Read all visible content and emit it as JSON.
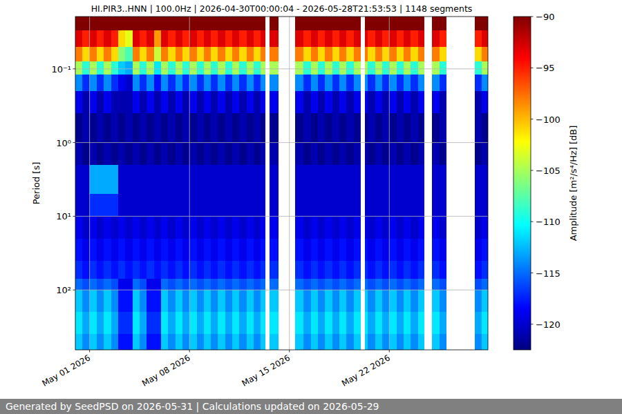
{
  "chart_data": {
    "type": "heatmap",
    "title": "HI.PIR3..HNN | 100.0Hz | 2026-04-30T00:00:04 - 2026-05-28T21:53:53 | 1148 segments",
    "y_label": "Period [s]",
    "log": "y",
    "grid": true,
    "xlim": [
      "2026-04-30T00:00:04",
      "2026-05-28T21:53:53"
    ],
    "ylim": [
      650,
      0.0195
    ],
    "xticks": [
      {
        "value": "2026-05-01",
        "label": "May 01 2026"
      },
      {
        "value": "2026-05-08",
        "label": "May 08 2026"
      },
      {
        "value": "2026-05-15",
        "label": "May 15 2026"
      },
      {
        "value": "2026-05-22",
        "label": "May 22 2026"
      }
    ],
    "yticks": [
      {
        "value": 0.1,
        "label": "10⁻¹"
      },
      {
        "value": 1,
        "label": "10⁰"
      },
      {
        "value": 10,
        "label": "10¹"
      },
      {
        "value": 100,
        "label": "10²"
      }
    ],
    "x_bins": [
      "2026-04-30T00:00",
      "2026-04-30T12:00",
      "2026-05-01T00:00",
      "2026-05-01T12:00",
      "2026-05-02T00:00",
      "2026-05-02T12:00",
      "2026-05-03T00:00",
      "2026-05-03T12:00",
      "2026-05-04T00:00",
      "2026-05-04T12:00",
      "2026-05-05T00:00",
      "2026-05-05T12:00",
      "2026-05-06T00:00",
      "2026-05-06T12:00",
      "2026-05-07T00:00",
      "2026-05-07T12:00",
      "2026-05-08T00:00",
      "2026-05-08T12:00",
      "2026-05-09T00:00",
      "2026-05-09T12:00",
      "2026-05-10T00:00",
      "2026-05-10T12:00",
      "2026-05-11T00:00",
      "2026-05-11T12:00",
      "2026-05-12T00:00",
      "2026-05-12T12:00",
      "2026-05-13T00:00",
      "2026-05-13T07:12",
      "2026-05-13T14:24",
      "2026-05-14T04:48",
      "2026-05-15T09:36",
      "2026-05-16T00:00",
      "2026-05-16T12:00",
      "2026-05-17T00:00",
      "2026-05-17T12:00",
      "2026-05-18T00:00",
      "2026-05-18T12:00",
      "2026-05-19T00:00",
      "2026-05-19T12:00",
      "2026-05-20T00:00",
      "2026-05-20T07:12",
      "2026-05-20T12:00",
      "2026-05-21T00:00",
      "2026-05-21T12:00",
      "2026-05-22T00:00",
      "2026-05-22T12:00",
      "2026-05-23T00:00",
      "2026-05-23T12:00",
      "2026-05-24T00:00",
      "2026-05-24T10:48",
      "2026-05-25T00:00",
      "2026-05-25T12:00",
      "2026-05-26T00:00",
      "2026-05-28T00:00",
      "2026-05-28T12:00",
      "2026-05-29T00:00"
    ],
    "y_bins": [
      0.0195,
      0.03,
      0.05,
      0.08,
      0.12,
      0.2,
      0.4,
      1,
      2,
      5,
      10,
      20,
      40,
      70,
      100,
      200,
      400,
      650
    ],
    "cells": [
      [
        -90,
        -90,
        -90,
        -90,
        -90,
        -90,
        -90,
        -90,
        -90,
        -90,
        -90,
        -90,
        -90,
        -90,
        -90,
        -90,
        -90,
        -90,
        -90,
        -90,
        -90,
        -90,
        -90,
        -90,
        -90,
        -90,
        -90,
        null,
        -90,
        null,
        -90,
        -90,
        -90,
        -90,
        -90,
        -90,
        -90,
        -90,
        -90,
        null,
        -90,
        -90,
        -90,
        -90,
        -90,
        -90,
        -90,
        -90,
        -90,
        null,
        -90,
        -90,
        null,
        -90,
        -90
      ],
      [
        -93,
        -95,
        -93,
        -95,
        -93,
        -95,
        -101,
        -103,
        -93,
        -95,
        -93,
        -99,
        -93,
        -95,
        -93,
        -95,
        -93,
        -95,
        -93,
        -95,
        -93,
        -95,
        -93,
        -95,
        -93,
        -95,
        -93,
        null,
        -93,
        null,
        -93,
        -95,
        -93,
        -95,
        -93,
        -95,
        -93,
        -95,
        -93,
        null,
        -93,
        -95,
        -93,
        -95,
        -93,
        -95,
        -93,
        -95,
        -93,
        null,
        -93,
        -95,
        null,
        -95,
        -93
      ],
      [
        -98,
        -101,
        -98,
        -101,
        -98,
        -101,
        -106,
        -108,
        -98,
        -101,
        -98,
        -104,
        -98,
        -101,
        -98,
        -101,
        -98,
        -101,
        -98,
        -101,
        -98,
        -101,
        -98,
        -101,
        -98,
        -101,
        -98,
        null,
        -98,
        null,
        -98,
        -101,
        -98,
        -101,
        -98,
        -101,
        -98,
        -101,
        -98,
        null,
        -98,
        -101,
        -98,
        -101,
        -98,
        -101,
        -98,
        -101,
        -98,
        null,
        -98,
        -101,
        null,
        -101,
        -98
      ],
      [
        -105,
        -109,
        -105,
        -109,
        -105,
        -109,
        -112,
        -113,
        -105,
        -109,
        -105,
        -111,
        -105,
        -109,
        -105,
        -109,
        -105,
        -109,
        -105,
        -109,
        -105,
        -109,
        -105,
        -109,
        -105,
        -109,
        -105,
        null,
        -105,
        null,
        -105,
        -109,
        -105,
        -109,
        -105,
        -109,
        -105,
        -109,
        -105,
        null,
        -105,
        -109,
        -105,
        -109,
        -105,
        -109,
        -105,
        -109,
        -105,
        null,
        -105,
        -109,
        null,
        -109,
        -105
      ],
      [
        -114,
        -117,
        -114,
        -117,
        -114,
        -117,
        -119,
        -120,
        -114,
        -117,
        -114,
        -118,
        -114,
        -117,
        -114,
        -117,
        -114,
        -117,
        -114,
        -117,
        -114,
        -117,
        -114,
        -117,
        -114,
        -117,
        -114,
        null,
        -114,
        null,
        -114,
        -117,
        -114,
        -117,
        -114,
        -117,
        -114,
        -117,
        -114,
        null,
        -114,
        -117,
        -114,
        -117,
        -114,
        -117,
        -114,
        -117,
        -114,
        null,
        -114,
        -117,
        null,
        -117,
        -114
      ],
      [
        -119,
        -121,
        -119,
        -121,
        -119,
        -121,
        -121,
        -121,
        -119,
        -121,
        -119,
        -121,
        -119,
        -121,
        -119,
        -121,
        -119,
        -121,
        -119,
        -121,
        -119,
        -121,
        -119,
        -121,
        -119,
        -121,
        -119,
        null,
        -119,
        null,
        -119,
        -121,
        -119,
        -121,
        -119,
        -121,
        -119,
        -121,
        -119,
        null,
        -119,
        -121,
        -119,
        -121,
        -119,
        -121,
        -119,
        -121,
        -119,
        null,
        -119,
        -121,
        null,
        -121,
        -119
      ],
      [
        -122,
        -121,
        -122,
        -121,
        -122,
        -121,
        -122,
        -121,
        -122,
        -121,
        -122,
        -121,
        -122,
        -121,
        -122,
        -121,
        -122,
        -121,
        -122,
        -121,
        -122,
        -121,
        -122,
        -121,
        -122,
        -121,
        -122,
        null,
        -122,
        null,
        -122,
        -121,
        -122,
        -121,
        -122,
        -121,
        -122,
        -121,
        -122,
        null,
        -122,
        -121,
        -122,
        -121,
        -122,
        -121,
        -122,
        -121,
        -122,
        null,
        -122,
        -121,
        null,
        -121,
        -122
      ],
      [
        -121,
        -122,
        -121,
        -122,
        -121,
        -122,
        -121,
        -122,
        -121,
        -122,
        -121,
        -122,
        -121,
        -122,
        -121,
        -122,
        -121,
        -122,
        -121,
        -122,
        -121,
        -122,
        -121,
        -122,
        -121,
        -122,
        -121,
        null,
        -121,
        null,
        -121,
        -122,
        -121,
        -122,
        -121,
        -122,
        -121,
        -122,
        -121,
        null,
        -121,
        -122,
        -121,
        -122,
        -121,
        -122,
        -121,
        -122,
        -121,
        null,
        -121,
        -122,
        null,
        -122,
        -121
      ],
      [
        -120,
        -120,
        -113,
        -113,
        -113,
        -113,
        -120,
        -120,
        -120,
        -120,
        -120,
        -120,
        -120,
        -120,
        -120,
        -120,
        -120,
        -120,
        -120,
        -120,
        -120,
        -120,
        -120,
        -120,
        -120,
        -120,
        -120,
        null,
        -120,
        null,
        -120,
        -120,
        -120,
        -120,
        -120,
        -120,
        -120,
        -120,
        -120,
        null,
        -120,
        -120,
        -120,
        -120,
        -120,
        -120,
        -120,
        -120,
        -120,
        null,
        -120,
        -120,
        null,
        -120,
        -120
      ],
      [
        -120,
        -120,
        -117,
        -117,
        -117,
        -117,
        -120,
        -120,
        -120,
        -120,
        -120,
        -120,
        -120,
        -120,
        -120,
        -120,
        -120,
        -120,
        -120,
        -120,
        -120,
        -120,
        -120,
        -120,
        -120,
        -120,
        -120,
        null,
        -120,
        null,
        -120,
        -120,
        -120,
        -120,
        -120,
        -120,
        -120,
        -120,
        -120,
        null,
        -120,
        -120,
        -120,
        -120,
        -120,
        -120,
        -120,
        -120,
        -120,
        null,
        -120,
        -120,
        null,
        -120,
        -120
      ],
      [
        -119,
        -120,
        -119,
        -120,
        -119,
        -120,
        -119,
        -120,
        -119,
        -120,
        -119,
        -120,
        -119,
        -120,
        -119,
        -120,
        -119,
        -120,
        -119,
        -120,
        -119,
        -120,
        -119,
        -120,
        -119,
        -120,
        -119,
        null,
        -119,
        null,
        -119,
        -120,
        -119,
        -120,
        -119,
        -120,
        -119,
        -120,
        -119,
        null,
        -119,
        -120,
        -119,
        -120,
        -119,
        -120,
        -119,
        -120,
        -119,
        null,
        -119,
        -120,
        null,
        -120,
        -119
      ],
      [
        -118,
        -119,
        -118,
        -119,
        -118,
        -119,
        -118,
        -119,
        -118,
        -119,
        -118,
        -119,
        -118,
        -119,
        -118,
        -119,
        -118,
        -119,
        -118,
        -119,
        -118,
        -119,
        -118,
        -119,
        -118,
        -119,
        -118,
        null,
        -118,
        null,
        -118,
        -119,
        -118,
        -119,
        -118,
        -119,
        -118,
        -119,
        -118,
        null,
        -118,
        -119,
        -118,
        -119,
        -118,
        -119,
        -118,
        -119,
        -118,
        null,
        -118,
        -119,
        null,
        -119,
        -118
      ],
      [
        -117,
        -118,
        -117,
        -118,
        -117,
        -118,
        -117,
        -118,
        -117,
        -118,
        -117,
        -118,
        -117,
        -118,
        -117,
        -118,
        -117,
        -118,
        -117,
        -118,
        -117,
        -118,
        -117,
        -118,
        -117,
        -118,
        -117,
        null,
        -117,
        null,
        -117,
        -118,
        -117,
        -118,
        -117,
        -118,
        -117,
        -118,
        -117,
        null,
        -117,
        -118,
        -117,
        -118,
        -117,
        -118,
        -117,
        -118,
        -117,
        null,
        -117,
        -118,
        null,
        -118,
        -117
      ],
      [
        -115,
        -116,
        -115,
        -116,
        -115,
        -116,
        -119,
        -119,
        -115,
        -116,
        -119,
        -119,
        -115,
        -116,
        -115,
        -116,
        -115,
        -116,
        -115,
        -116,
        -115,
        -116,
        -115,
        -116,
        -115,
        -116,
        -115,
        null,
        -115,
        null,
        -115,
        -116,
        -115,
        -116,
        -115,
        -116,
        -115,
        -116,
        -115,
        null,
        -115,
        -116,
        -115,
        -116,
        -115,
        -116,
        -115,
        -116,
        -115,
        null,
        -115,
        -116,
        null,
        -116,
        -115
      ],
      [
        -112,
        -114,
        -112,
        -114,
        -112,
        -114,
        -118,
        -118,
        -112,
        -114,
        -118,
        -118,
        -112,
        -114,
        -112,
        -114,
        -112,
        -114,
        -112,
        -114,
        -112,
        -114,
        -112,
        -114,
        -112,
        -114,
        -112,
        null,
        -112,
        null,
        -112,
        -114,
        -112,
        -114,
        -112,
        -114,
        -112,
        -114,
        -112,
        null,
        -112,
        -114,
        -112,
        -114,
        -112,
        -114,
        -112,
        -114,
        -112,
        null,
        -112,
        -114,
        null,
        -114,
        -112
      ],
      [
        -111,
        -113,
        -111,
        -113,
        -111,
        -113,
        -117,
        -117,
        -111,
        -113,
        -117,
        -117,
        -111,
        -113,
        -111,
        -113,
        -111,
        -113,
        -111,
        -113,
        -111,
        -113,
        -111,
        -113,
        -111,
        -113,
        -111,
        null,
        -111,
        null,
        -111,
        -113,
        -111,
        -113,
        -111,
        -113,
        -111,
        -113,
        -111,
        null,
        -111,
        -113,
        -111,
        -113,
        -111,
        -113,
        -111,
        -113,
        -111,
        null,
        -111,
        -113,
        null,
        -113,
        -111
      ],
      [
        -112,
        -114,
        -112,
        -114,
        -112,
        -114,
        -118,
        -118,
        -112,
        -114,
        -118,
        -118,
        -112,
        -114,
        -112,
        -114,
        -112,
        -114,
        -112,
        -114,
        -112,
        -114,
        -112,
        -114,
        -112,
        -114,
        -112,
        null,
        -112,
        null,
        -112,
        -114,
        -112,
        -114,
        -112,
        -114,
        -112,
        -114,
        -112,
        null,
        -112,
        -114,
        -112,
        -114,
        -112,
        -114,
        -112,
        -114,
        -112,
        null,
        -112,
        -114,
        null,
        -114,
        -112
      ]
    ],
    "colorbar": {
      "label": "Amplitude [m²/s⁴/Hz] [dB]",
      "range": [
        -122.5,
        -90
      ],
      "ticks": [
        {
          "value": -90,
          "label": "−90"
        },
        {
          "value": -95,
          "label": "−95"
        },
        {
          "value": -100,
          "label": "−100"
        },
        {
          "value": -105,
          "label": "−105"
        },
        {
          "value": -110,
          "label": "−110"
        },
        {
          "value": -115,
          "label": "−115"
        },
        {
          "value": -120,
          "label": "−120"
        }
      ]
    }
  },
  "footer": {
    "text": "Generated by SeedPSD on 2026-05-31 | Calculations updated on 2026-05-29"
  }
}
